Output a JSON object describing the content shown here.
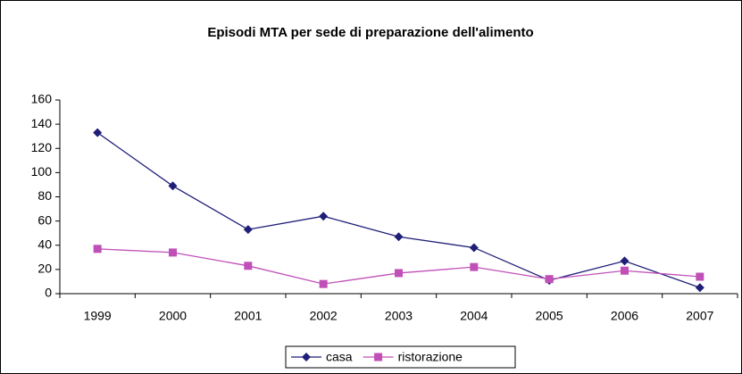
{
  "chart_data": {
    "type": "line",
    "title": "Episodi MTA per sede di preparazione dell'alimento",
    "categories": [
      "1999",
      "2000",
      "2001",
      "2002",
      "2003",
      "2004",
      "2005",
      "2006",
      "2007"
    ],
    "series": [
      {
        "name": "casa",
        "color": "#1f1f78",
        "marker": "diamond",
        "values": [
          133,
          89,
          53,
          64,
          47,
          38,
          11,
          27,
          5
        ]
      },
      {
        "name": "ristorazione",
        "color": "#c050b8",
        "marker": "square",
        "values": [
          37,
          34,
          23,
          8,
          17,
          22,
          12,
          19,
          14
        ]
      }
    ],
    "ylim": [
      0,
      160
    ],
    "yticks": [
      0,
      20,
      40,
      60,
      80,
      100,
      120,
      140,
      160
    ],
    "grid": false,
    "legend": "bottom"
  }
}
